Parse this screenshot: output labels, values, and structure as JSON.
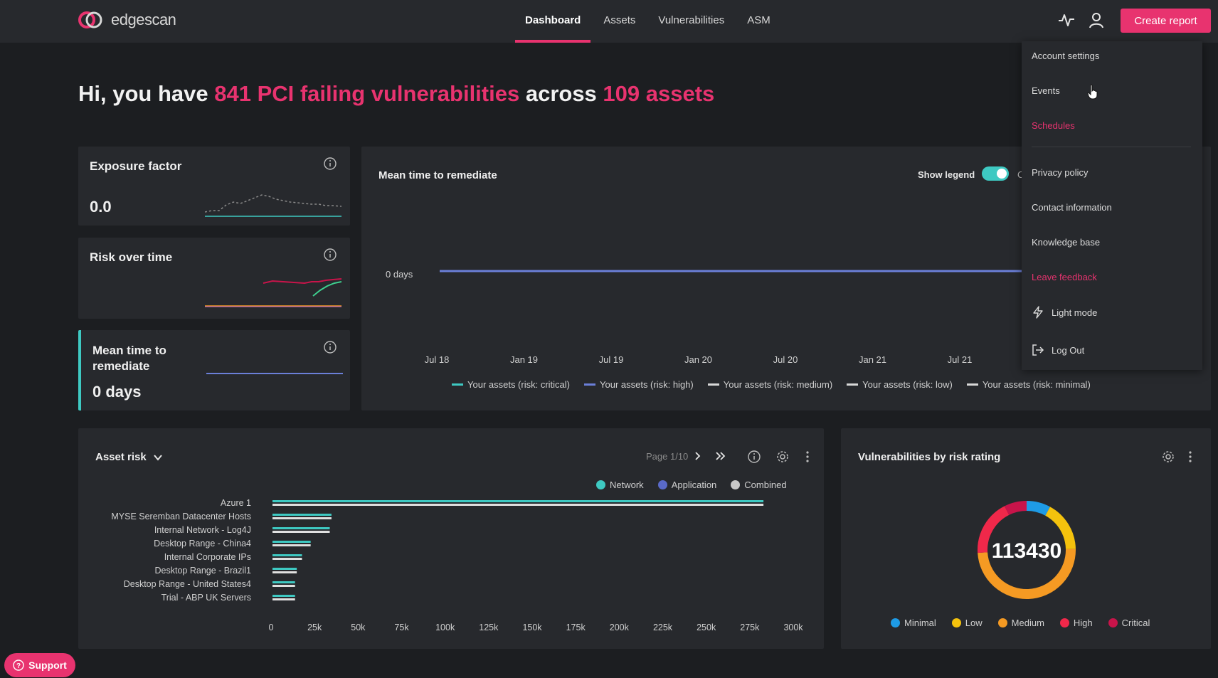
{
  "app": {
    "logo_text": "edgescan",
    "nav": [
      "Dashboard",
      "Assets",
      "Vulnerabilities",
      "ASM"
    ],
    "active_nav": "Dashboard",
    "create_report": "Create report"
  },
  "greeting": {
    "prefix": "Hi, you have ",
    "highlight1": "841 PCI failing vulnerabilities",
    "middle": " across ",
    "highlight2": "109 assets"
  },
  "exposure": {
    "title": "Exposure factor",
    "value": "0.0"
  },
  "risk": {
    "title": "Risk over time"
  },
  "mttr_card": {
    "title_line1": "Mean time to",
    "title_line2": "remediate",
    "value": "0 days"
  },
  "mttr_chart": {
    "title": "Mean time to remediate",
    "show_legend_label": "Show legend",
    "legend_on": true,
    "clipped_label_char": "C",
    "y_label": "0 days",
    "x_ticks": [
      "Jul 18",
      "Jan 19",
      "Jul 19",
      "Jan 20",
      "Jul 20",
      "Jan 21",
      "Jul 21"
    ],
    "legend": [
      {
        "label": "Your assets (risk: critical)",
        "color": "#3ec9c2"
      },
      {
        "label": "Your assets (risk: high)",
        "color": "#6b7fd8"
      },
      {
        "label": "Your assets (risk: medium)",
        "color": "#d8d8d8"
      },
      {
        "label": "Your assets (risk: low)",
        "color": "#d8d8d8"
      },
      {
        "label": "Your assets (risk: minimal)",
        "color": "#d8d8d8"
      }
    ]
  },
  "asset_risk": {
    "title": "Asset risk",
    "page": "Page 1/10",
    "legend": [
      {
        "label": "Network",
        "color": "#3ec9c2"
      },
      {
        "label": "Application",
        "color": "#5a6ac8"
      },
      {
        "label": "Combined",
        "color": "#c8c8c8"
      }
    ]
  },
  "vulns": {
    "title": "Vulnerabilities by risk rating",
    "total": "113430",
    "legend": [
      {
        "label": "Minimal",
        "color": "#1e9be6"
      },
      {
        "label": "Low",
        "color": "#f4c20d"
      },
      {
        "label": "Medium",
        "color": "#f59a23"
      },
      {
        "label": "High",
        "color": "#f0284a"
      },
      {
        "label": "Critical",
        "color": "#c8144a"
      }
    ]
  },
  "chart_data": [
    {
      "type": "bar",
      "title": "Asset risk",
      "orientation": "horizontal",
      "categories": [
        "Azure 1",
        "MYSE Seremban Datacenter Hosts",
        "Internal Network - Log4J",
        "Desktop Range - China4",
        "Internal Corporate IPs",
        "Desktop Range - Brazil1",
        "Desktop Range - United States4",
        "Trial - ABP UK Servers"
      ],
      "series": [
        {
          "name": "Network",
          "values": [
            283000,
            34000,
            33000,
            22000,
            17000,
            14000,
            13000,
            13000
          ]
        },
        {
          "name": "Combined",
          "values": [
            283000,
            34000,
            33000,
            22000,
            17000,
            14000,
            13000,
            13000
          ]
        }
      ],
      "x_ticks": [
        "0",
        "25k",
        "50k",
        "75k",
        "100k",
        "125k",
        "150k",
        "175k",
        "200k",
        "225k",
        "250k",
        "275k",
        "300k"
      ],
      "xlim": [
        0,
        300000
      ]
    },
    {
      "type": "pie",
      "title": "Vulnerabilities by risk rating",
      "categories": [
        "Minimal",
        "Low",
        "Medium",
        "High",
        "Critical"
      ],
      "values": [
        9000,
        19000,
        56000,
        21000,
        8430
      ],
      "colors": [
        "#1e9be6",
        "#f4c20d",
        "#f59a23",
        "#f0284a",
        "#c8144a"
      ]
    },
    {
      "type": "line",
      "title": "Mean time to remediate",
      "x": [
        "Jul 18",
        "Jan 19",
        "Jul 19",
        "Jan 20",
        "Jul 20",
        "Jan 21",
        "Jul 21"
      ],
      "series": [
        {
          "name": "Your assets (risk: high)",
          "values": [
            0,
            0,
            0,
            0,
            0,
            0,
            0
          ]
        }
      ],
      "y_label": "0 days"
    }
  ],
  "menu": {
    "items_top": [
      "Account settings",
      "Events",
      "Schedules"
    ],
    "items_bottom": [
      "Privacy policy",
      "Contact information",
      "Knowledge base",
      "Leave feedback"
    ],
    "light_mode": "Light mode",
    "log_out": "Log Out"
  },
  "support": {
    "label": "Support"
  },
  "icons": [
    "activity-icon",
    "user-icon",
    "info-icon",
    "settings-icon",
    "more-icon",
    "chevron-down-icon",
    "chevron-right-icon",
    "double-chevron-right-icon",
    "lightning-icon",
    "logout-icon",
    "help-icon"
  ]
}
